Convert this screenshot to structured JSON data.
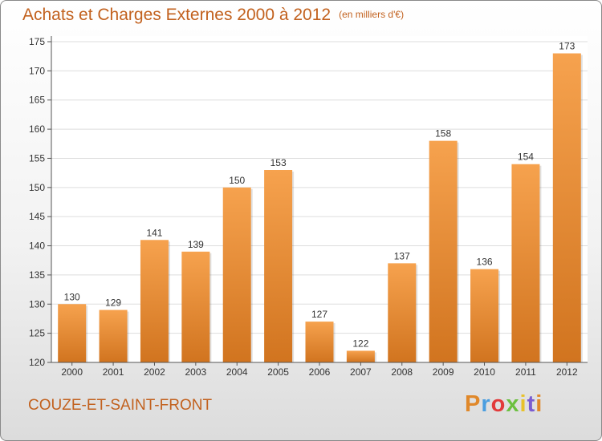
{
  "header": {
    "title": "Achats et Charges Externes 2000 à 2012",
    "unit": "(en milliers d'€)"
  },
  "footer": {
    "commune": "COUZE-ET-SAINT-FRONT",
    "logo_letters": [
      "P",
      "r",
      "o",
      "x",
      "i",
      "t",
      "i"
    ]
  },
  "colors": {
    "title": "#c2611e",
    "bar_top": "#f6a24e",
    "bar_bottom": "#d1741f"
  },
  "chart_data": {
    "type": "bar",
    "title": "Achats et Charges Externes 2000 à 2012",
    "subtitle": "(en milliers d'€)",
    "xlabel": "",
    "ylabel": "",
    "categories": [
      "2000",
      "2001",
      "2002",
      "2003",
      "2004",
      "2005",
      "2006",
      "2007",
      "2008",
      "2009",
      "2010",
      "2011",
      "2012"
    ],
    "values": [
      130,
      129,
      141,
      139,
      150,
      153,
      127,
      122,
      137,
      158,
      136,
      154,
      173
    ],
    "ylim": [
      120,
      175
    ],
    "yticks": [
      120,
      125,
      130,
      135,
      140,
      145,
      150,
      155,
      160,
      165,
      170,
      175
    ],
    "grid": true,
    "data_labels": true
  }
}
